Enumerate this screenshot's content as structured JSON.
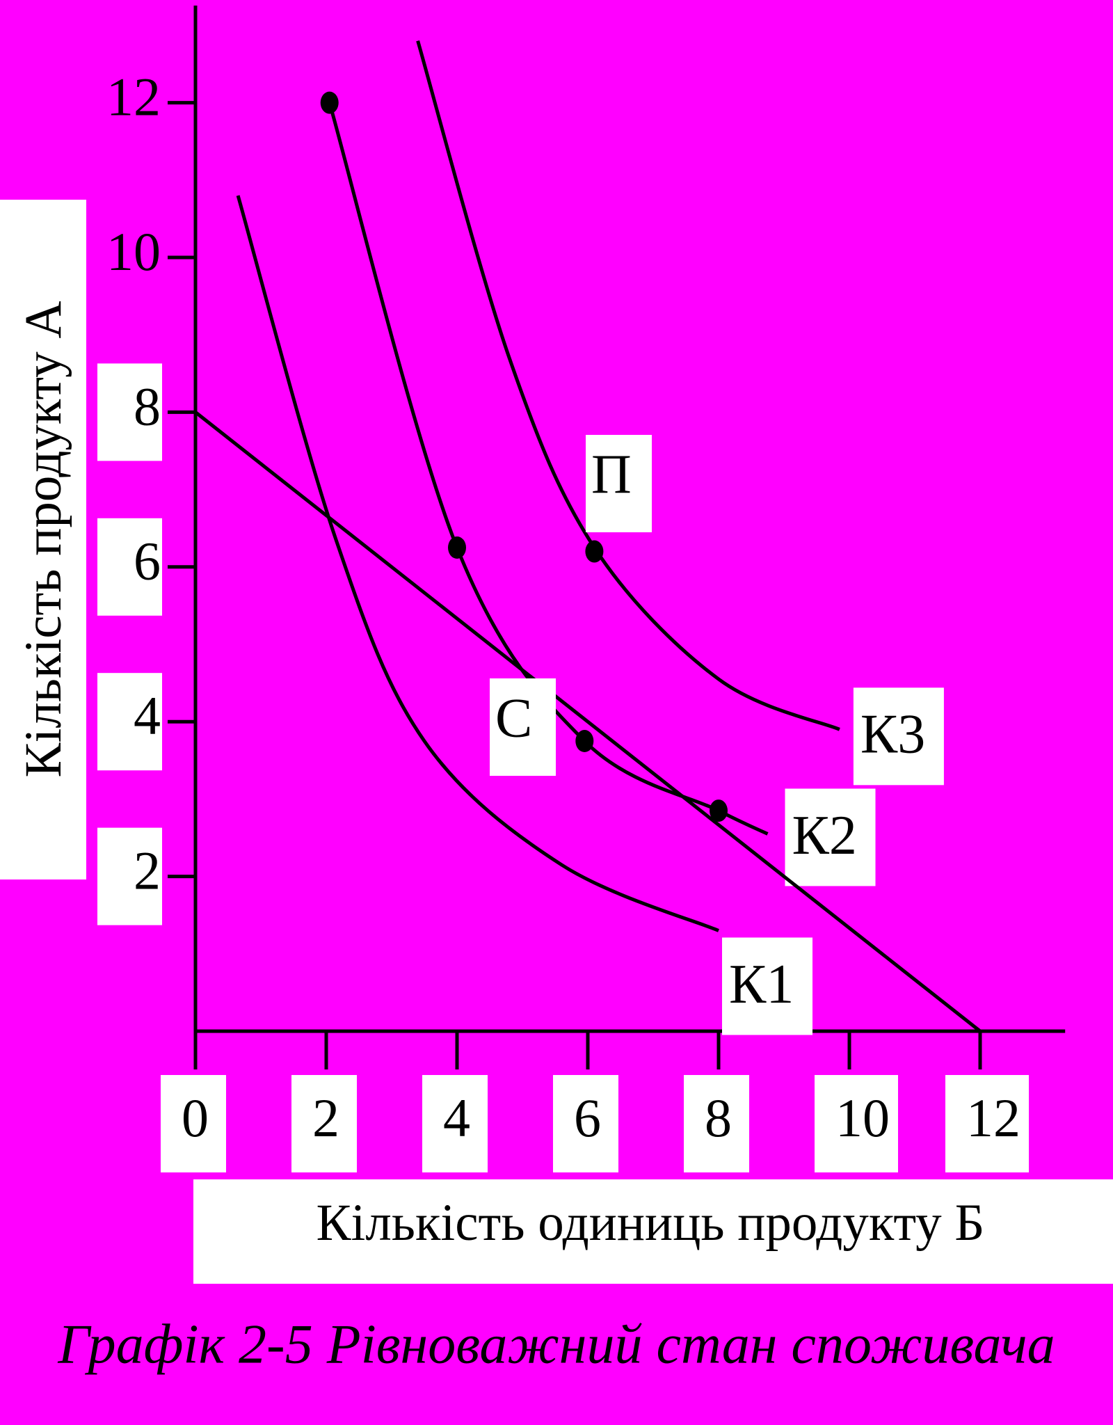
{
  "chart_data": {
    "type": "line",
    "title": "Графік 2-5 Рівноважний стан споживача",
    "x_label": "Кількість одиниць продукту Б",
    "y_label": "Кількість продукту А",
    "xlim": [
      0,
      13.3
    ],
    "ylim": [
      0,
      13
    ],
    "xticks": [
      0,
      2,
      4,
      6,
      8,
      10,
      12
    ],
    "yticks": [
      2,
      4,
      6,
      8,
      10,
      12
    ],
    "color": "#000000",
    "series": [
      {
        "name": "К1",
        "x": [
          0.65,
          2.15,
          3.5,
          5.6,
          8
        ],
        "values": [
          10.8,
          6.35,
          3.75,
          2.15,
          1.3
        ]
      },
      {
        "name": "К2",
        "x": [
          2.05,
          4,
          5.95,
          8,
          8.75
        ],
        "values": [
          12,
          6.25,
          3.75,
          2.85,
          2.55
        ]
      },
      {
        "name": "К3",
        "x": [
          3.4,
          4.8,
          6.1,
          8,
          9.85
        ],
        "values": [
          12.8,
          8.7,
          6.25,
          4.55,
          3.9
        ]
      },
      {
        "name": "budget",
        "x": [
          0,
          12
        ],
        "values": [
          8,
          0
        ]
      }
    ],
    "points": {
      "x": [
        2.05,
        4,
        5.95,
        8,
        6.1
      ],
      "values": [
        12,
        6.25,
        3.75,
        2.85,
        6.2
      ]
    },
    "annotations": [
      "П",
      "С"
    ]
  }
}
